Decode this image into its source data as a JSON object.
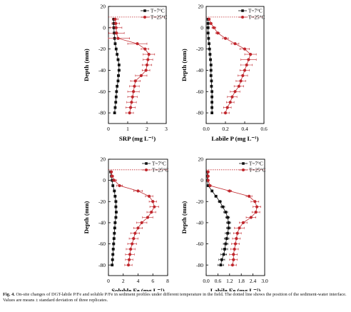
{
  "colors": {
    "series_7": "#111111",
    "series_25": "#c0272d",
    "dotted_line": "#c0272d"
  },
  "caption": {
    "label": "Fig. 4.",
    "text": "On-site changes of DGT-labile P/Fe and soluble P/Fe in sediment profiles under different temperature in the field. The dotted line shows the position of the sediment-water interface. Values are means ± standard deviation of three replicates."
  },
  "chart_data": [
    {
      "type": "scatter",
      "xlabel": "SRP (mg L⁻¹)",
      "ylabel": "Depth (mm)",
      "xlim": [
        0,
        3
      ],
      "ylim": [
        20,
        -90
      ],
      "xticks": [
        "0",
        "1",
        "2",
        "3"
      ],
      "yticks": [
        "20",
        "0",
        "-20",
        "-40",
        "-60",
        "-80"
      ],
      "interface_depth": 10,
      "legend_position": "top-right",
      "series": [
        {
          "name": "T=7°C",
          "marker": "square",
          "points": [
            [
              0.28,
              8
            ],
            [
              0.28,
              4
            ],
            [
              0.28,
              0
            ],
            [
              0.3,
              -5
            ],
            [
              0.32,
              -10
            ],
            [
              0.35,
              -15
            ],
            [
              0.4,
              -20
            ],
            [
              0.45,
              -25
            ],
            [
              0.5,
              -30
            ],
            [
              0.55,
              -35
            ],
            [
              0.55,
              -40
            ],
            [
              0.52,
              -45
            ],
            [
              0.5,
              -50
            ],
            [
              0.45,
              -55
            ],
            [
              0.42,
              -60
            ],
            [
              0.4,
              -65
            ],
            [
              0.38,
              -70
            ],
            [
              0.35,
              -75
            ],
            [
              0.32,
              -80
            ]
          ],
          "err": [
            0.02,
            0.02,
            0.02,
            0.03,
            0.03,
            0.03,
            0.04,
            0.04,
            0.05,
            0.05,
            0.06,
            0.06,
            0.05,
            0.05,
            0.05,
            0.05,
            0.04,
            0.04,
            0.04
          ]
        },
        {
          "name": "T=25°C",
          "marker": "circle",
          "points": [
            [
              0.35,
              8
            ],
            [
              0.38,
              4
            ],
            [
              0.4,
              0
            ],
            [
              0.42,
              -5
            ],
            [
              0.5,
              -10
            ],
            [
              1.5,
              -15
            ],
            [
              1.9,
              -20
            ],
            [
              2.1,
              -25
            ],
            [
              2.05,
              -30
            ],
            [
              2.0,
              -35
            ],
            [
              1.95,
              -40
            ],
            [
              1.7,
              -45
            ],
            [
              1.4,
              -50
            ],
            [
              1.35,
              -55
            ],
            [
              1.3,
              -60
            ],
            [
              1.25,
              -65
            ],
            [
              1.2,
              -70
            ],
            [
              1.15,
              -75
            ],
            [
              1.1,
              -80
            ]
          ],
          "err": [
            0.15,
            0.2,
            0.3,
            0.4,
            0.6,
            0.5,
            0.2,
            0.3,
            0.25,
            0.25,
            0.2,
            0.3,
            0.25,
            0.25,
            0.3,
            0.25,
            0.25,
            0.25,
            0.2
          ]
        }
      ]
    },
    {
      "type": "scatter",
      "xlabel": "Labile P (mg L⁻¹)",
      "ylabel": "Depth (mm)",
      "xlim": [
        0,
        0.6
      ],
      "ylim": [
        20,
        -90
      ],
      "xticks": [
        "0.0",
        "0.2",
        "0.4",
        "0.6"
      ],
      "yticks": [
        "20",
        "0",
        "-20",
        "-40",
        "-60",
        "-80"
      ],
      "interface_depth": 10,
      "legend_position": "top-right",
      "series": [
        {
          "name": "T=7°C",
          "marker": "square",
          "points": [
            [
              0.02,
              8
            ],
            [
              0.02,
              4
            ],
            [
              0.02,
              0
            ],
            [
              0.02,
              -5
            ],
            [
              0.025,
              -10
            ],
            [
              0.03,
              -15
            ],
            [
              0.035,
              -20
            ],
            [
              0.04,
              -25
            ],
            [
              0.045,
              -30
            ],
            [
              0.05,
              -35
            ],
            [
              0.05,
              -40
            ],
            [
              0.05,
              -45
            ],
            [
              0.055,
              -50
            ],
            [
              0.055,
              -55
            ],
            [
              0.06,
              -60
            ],
            [
              0.06,
              -65
            ],
            [
              0.06,
              -70
            ],
            [
              0.06,
              -75
            ],
            [
              0.06,
              -80
            ]
          ],
          "err": [
            0.005,
            0.005,
            0.005,
            0.005,
            0.005,
            0.005,
            0.006,
            0.006,
            0.006,
            0.006,
            0.006,
            0.006,
            0.006,
            0.006,
            0.006,
            0.006,
            0.006,
            0.006,
            0.006
          ]
        },
        {
          "name": "T=25°C",
          "marker": "circle",
          "points": [
            [
              0.03,
              8
            ],
            [
              0.05,
              4
            ],
            [
              0.08,
              0
            ],
            [
              0.12,
              -5
            ],
            [
              0.2,
              -10
            ],
            [
              0.3,
              -15
            ],
            [
              0.4,
              -20
            ],
            [
              0.46,
              -25
            ],
            [
              0.44,
              -30
            ],
            [
              0.42,
              -35
            ],
            [
              0.4,
              -40
            ],
            [
              0.38,
              -45
            ],
            [
              0.36,
              -50
            ],
            [
              0.34,
              -55
            ],
            [
              0.3,
              -60
            ],
            [
              0.27,
              -65
            ],
            [
              0.25,
              -70
            ],
            [
              0.22,
              -75
            ],
            [
              0.2,
              -80
            ]
          ],
          "err": [
            0.01,
            0.01,
            0.02,
            0.02,
            0.03,
            0.04,
            0.05,
            0.06,
            0.08,
            0.06,
            0.05,
            0.05,
            0.05,
            0.05,
            0.05,
            0.05,
            0.04,
            0.04,
            0.04
          ]
        }
      ]
    },
    {
      "type": "scatter",
      "xlabel": "Soluble Fe (mg L⁻¹)",
      "ylabel": "Depth (mm)",
      "xlim": [
        0,
        8
      ],
      "ylim": [
        20,
        -90
      ],
      "xticks": [
        "0",
        "2",
        "4",
        "6",
        "8"
      ],
      "yticks": [
        "20",
        "0",
        "-20",
        "-40",
        "-60",
        "-80"
      ],
      "interface_depth": 10,
      "legend_position": "top-right",
      "series": [
        {
          "name": "T=7°C",
          "marker": "square",
          "points": [
            [
              0.3,
              8
            ],
            [
              0.4,
              4
            ],
            [
              0.5,
              0
            ],
            [
              0.6,
              -5
            ],
            [
              0.8,
              -10
            ],
            [
              0.9,
              -15
            ],
            [
              1.0,
              -20
            ],
            [
              1.0,
              -25
            ],
            [
              1.05,
              -30
            ],
            [
              1.0,
              -35
            ],
            [
              0.9,
              -40
            ],
            [
              0.85,
              -45
            ],
            [
              0.8,
              -50
            ],
            [
              0.75,
              -55
            ],
            [
              0.7,
              -60
            ],
            [
              0.65,
              -65
            ],
            [
              0.6,
              -70
            ],
            [
              0.55,
              -75
            ],
            [
              0.5,
              -80
            ]
          ],
          "err": [
            0.1,
            0.1,
            0.1,
            0.1,
            0.15,
            0.15,
            0.15,
            0.15,
            0.15,
            0.15,
            0.15,
            0.15,
            0.15,
            0.15,
            0.15,
            0.15,
            0.15,
            0.15,
            0.15
          ]
        },
        {
          "name": "T=25°C",
          "marker": "circle",
          "points": [
            [
              0.4,
              8
            ],
            [
              0.5,
              4
            ],
            [
              0.8,
              0
            ],
            [
              1.5,
              -5
            ],
            [
              4.0,
              -10
            ],
            [
              5.5,
              -15
            ],
            [
              6.0,
              -20
            ],
            [
              6.2,
              -25
            ],
            [
              5.8,
              -30
            ],
            [
              5.3,
              -35
            ],
            [
              4.5,
              -40
            ],
            [
              4.0,
              -45
            ],
            [
              3.6,
              -50
            ],
            [
              3.4,
              -55
            ],
            [
              3.2,
              -60
            ],
            [
              3.0,
              -65
            ],
            [
              2.9,
              -70
            ],
            [
              2.8,
              -75
            ],
            [
              2.7,
              -80
            ]
          ],
          "err": [
            0.1,
            0.2,
            0.3,
            0.4,
            0.6,
            0.5,
            0.5,
            0.6,
            0.6,
            0.7,
            0.7,
            0.6,
            0.6,
            0.6,
            0.6,
            0.6,
            0.6,
            0.5,
            0.5
          ]
        }
      ]
    },
    {
      "type": "scatter",
      "xlabel": "Labile Fe (mg L⁻¹)",
      "ylabel": "Depth (mm)",
      "xlim": [
        0,
        3.0
      ],
      "ylim": [
        20,
        -90
      ],
      "xticks": [
        "0.0",
        "0.6",
        "1.2",
        "1.8",
        "2.4",
        "3.0"
      ],
      "yticks": [
        "20",
        "0",
        "-20",
        "-40",
        "-60",
        "-80"
      ],
      "interface_depth": 10,
      "legend_position": "top-right",
      "series": [
        {
          "name": "T=7°C",
          "marker": "square",
          "points": [
            [
              0.05,
              8
            ],
            [
              0.05,
              4
            ],
            [
              0.05,
              0
            ],
            [
              0.1,
              -5
            ],
            [
              0.3,
              -10
            ],
            [
              0.5,
              -15
            ],
            [
              0.7,
              -20
            ],
            [
              0.85,
              -25
            ],
            [
              1.0,
              -30
            ],
            [
              1.1,
              -35
            ],
            [
              1.15,
              -40
            ],
            [
              1.15,
              -45
            ],
            [
              1.1,
              -50
            ],
            [
              1.05,
              -55
            ],
            [
              1.0,
              -60
            ],
            [
              0.95,
              -65
            ],
            [
              0.9,
              -70
            ],
            [
              0.8,
              -75
            ],
            [
              0.75,
              -80
            ]
          ],
          "err": [
            0.02,
            0.02,
            0.02,
            0.03,
            0.05,
            0.06,
            0.08,
            0.1,
            0.1,
            0.1,
            0.1,
            0.1,
            0.12,
            0.12,
            0.12,
            0.15,
            0.15,
            0.15,
            0.15
          ]
        },
        {
          "name": "T=25°C",
          "marker": "circle",
          "points": [
            [
              0.1,
              8
            ],
            [
              0.1,
              4
            ],
            [
              0.1,
              0
            ],
            [
              0.2,
              -5
            ],
            [
              1.2,
              -10
            ],
            [
              2.2,
              -15
            ],
            [
              2.5,
              -20
            ],
            [
              2.6,
              -25
            ],
            [
              2.55,
              -30
            ],
            [
              2.3,
              -35
            ],
            [
              1.9,
              -40
            ],
            [
              1.7,
              -45
            ],
            [
              1.6,
              -50
            ],
            [
              1.55,
              -55
            ],
            [
              1.5,
              -60
            ],
            [
              1.45,
              -65
            ],
            [
              1.4,
              -70
            ],
            [
              1.4,
              -75
            ],
            [
              1.35,
              -80
            ]
          ],
          "err": [
            0.03,
            0.03,
            0.03,
            0.05,
            0.1,
            0.15,
            0.2,
            0.2,
            0.2,
            0.25,
            0.2,
            0.25,
            0.2,
            0.2,
            0.2,
            0.2,
            0.2,
            0.2,
            0.2
          ]
        }
      ]
    }
  ]
}
